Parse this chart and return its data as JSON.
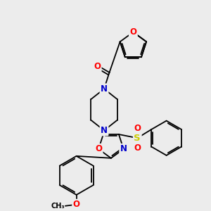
{
  "bg_color": "#ececec",
  "atom_colors": {
    "O": "#ff0000",
    "N": "#0000cc",
    "S": "#cccc00",
    "C": "#000000"
  },
  "bond_color": "#000000",
  "lw": 1.3,
  "font_size_atom": 7.5
}
